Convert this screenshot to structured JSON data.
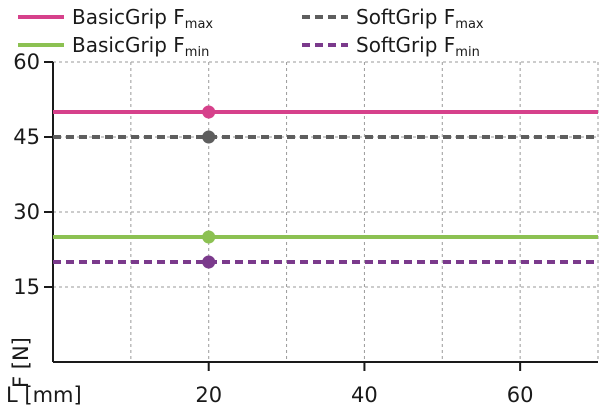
{
  "chart_data": {
    "type": "line",
    "xlabel": "L [mm]",
    "ylabel": "F [N]",
    "xlim": [
      0,
      70
    ],
    "ylim": [
      0,
      60
    ],
    "x_ticks": [
      20,
      40,
      60
    ],
    "y_ticks": [
      15,
      30,
      45,
      60
    ],
    "x_grid": [
      10,
      20,
      30,
      40,
      50,
      60,
      70
    ],
    "y_grid": [
      15,
      30,
      45,
      60
    ],
    "grid": true,
    "legend_position": "top",
    "series": [
      {
        "name": "BasicGrip F",
        "name_sub": "max",
        "color": "#d6418b",
        "dash": "solid",
        "x": [
          0,
          70
        ],
        "y": [
          50,
          50
        ],
        "marker": {
          "x": 20,
          "y": 50
        }
      },
      {
        "name": "SoftGrip F",
        "name_sub": "max",
        "color": "#5e5e5e",
        "dash": "dashed",
        "x": [
          0,
          70
        ],
        "y": [
          45,
          45
        ],
        "marker": {
          "x": 20,
          "y": 45
        }
      },
      {
        "name": "BasicGrip F",
        "name_sub": "min",
        "color": "#8cc152",
        "dash": "solid",
        "x": [
          0,
          70
        ],
        "y": [
          25,
          25
        ],
        "marker": {
          "x": 20,
          "y": 25
        }
      },
      {
        "name": "SoftGrip F",
        "name_sub": "min",
        "color": "#7b3a8c",
        "dash": "dashed",
        "x": [
          0,
          70
        ],
        "y": [
          20,
          20
        ],
        "marker": {
          "x": 20,
          "y": 20
        }
      }
    ]
  }
}
